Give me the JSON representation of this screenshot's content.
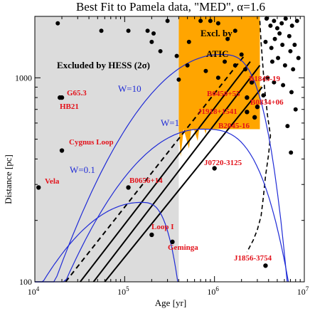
{
  "chart_data": {
    "type": "scatter",
    "title": "Best Fit to Pamela data, \"MED\", α=1.6",
    "xlabel": "Age [yr]",
    "ylabel": "Distance [pc]",
    "xscale": "log",
    "yscale": "log",
    "xlim": [
      10000,
      10000000
    ],
    "ylim": [
      100,
      2000
    ],
    "x_ticks": [
      10000,
      100000,
      1000000,
      10000000
    ],
    "x_tick_labels": [
      "10",
      "10",
      "10",
      "10"
    ],
    "x_tick_exponents": [
      "4",
      "5",
      "6",
      "7"
    ],
    "y_ticks": [
      100,
      1000
    ],
    "y_tick_labels": [
      "100",
      "1000"
    ],
    "regions": {
      "hess_label": "Excluded by HESS (2σ)",
      "hess_xmax": 400000,
      "hess_color": "#dcdcdc",
      "atic_label_1": "Excl. by",
      "atic_label_2": "ATIC",
      "atic_xmin": 400000,
      "atic_xmax": 3200000,
      "atic_color": "#ffa500"
    },
    "w_curves": [
      {
        "label": "W=10",
        "peak_age": 1150000,
        "peak_dist": 1300
      },
      {
        "label": "W=1",
        "peak_age": 700000,
        "peak_dist": 560
      },
      {
        "label": "W=0.1",
        "peak_age": 150000,
        "peak_dist": 245
      }
    ],
    "line_color": "#1f2bd6",
    "sources": [
      {
        "name": "G65.3",
        "age": 20000,
        "dist": 800
      },
      {
        "name": "HB21",
        "age": 19000,
        "dist": 800
      },
      {
        "name": "Cygnus Loop",
        "age": 20000,
        "dist": 440
      },
      {
        "name": "Vela",
        "age": 11000,
        "dist": 290
      },
      {
        "name": "B0656+14",
        "age": 110000,
        "dist": 290
      },
      {
        "name": "Loop I",
        "age": 200000,
        "dist": 170
      },
      {
        "name": "Geminga",
        "age": 340000,
        "dist": 157
      },
      {
        "name": "B1845-19",
        "age": 2600000,
        "dist": 950
      },
      {
        "name": "B0450+55",
        "age": 2300000,
        "dist": 800
      },
      {
        "name": "J1918+1541",
        "age": 2300000,
        "dist": 680
      },
      {
        "name": "B0834+06",
        "age": 3000000,
        "dist": 720
      },
      {
        "name": "B2045-16",
        "age": 2800000,
        "dist": 640
      },
      {
        "name": "J0720-3125",
        "age": 1000000,
        "dist": 360
      },
      {
        "name": "J1856-3754",
        "age": 3700000,
        "dist": 120
      }
    ],
    "extra_points": [
      [
        18000,
        1850
      ],
      [
        55000,
        1700
      ],
      [
        110000,
        1700
      ],
      [
        200000,
        1500
      ],
      [
        180000,
        1700
      ],
      [
        210000,
        1650
      ],
      [
        300000,
        1900
      ],
      [
        250000,
        1350
      ],
      [
        380000,
        1280
      ],
      [
        520000,
        1500
      ],
      [
        700000,
        1900
      ],
      [
        900000,
        1900
      ],
      [
        1100000,
        1850
      ],
      [
        1400000,
        1550
      ],
      [
        1700000,
        1700
      ],
      [
        500000,
        1150
      ],
      [
        800000,
        1080
      ],
      [
        1300000,
        1200
      ],
      [
        2000000,
        1300
      ],
      [
        1700000,
        1150
      ],
      [
        1100000,
        1000
      ],
      [
        2200000,
        1100
      ],
      [
        3800000,
        1950
      ],
      [
        4200000,
        1800
      ],
      [
        4600000,
        1900
      ],
      [
        5000000,
        1750
      ],
      [
        5600000,
        1850
      ],
      [
        6200000,
        1950
      ],
      [
        7300000,
        1800
      ],
      [
        8300000,
        1900
      ],
      [
        3700000,
        1500
      ],
      [
        4300000,
        1400
      ],
      [
        4700000,
        1550
      ],
      [
        5300000,
        1650
      ],
      [
        5700000,
        1450
      ],
      [
        6800000,
        1600
      ],
      [
        7000000,
        1350
      ],
      [
        7800000,
        1450
      ],
      [
        4400000,
        1200
      ],
      [
        5100000,
        1250
      ],
      [
        6100000,
        1150
      ],
      [
        7500000,
        1100
      ],
      [
        8600000,
        1250
      ],
      [
        3900000,
        1000
      ],
      [
        4600000,
        950
      ],
      [
        5800000,
        920
      ],
      [
        7200000,
        850
      ],
      [
        8000000,
        700
      ],
      [
        6500000,
        580
      ],
      [
        7100000,
        430
      ],
      [
        400000,
        980
      ],
      [
        3500000,
        820
      ]
    ]
  }
}
